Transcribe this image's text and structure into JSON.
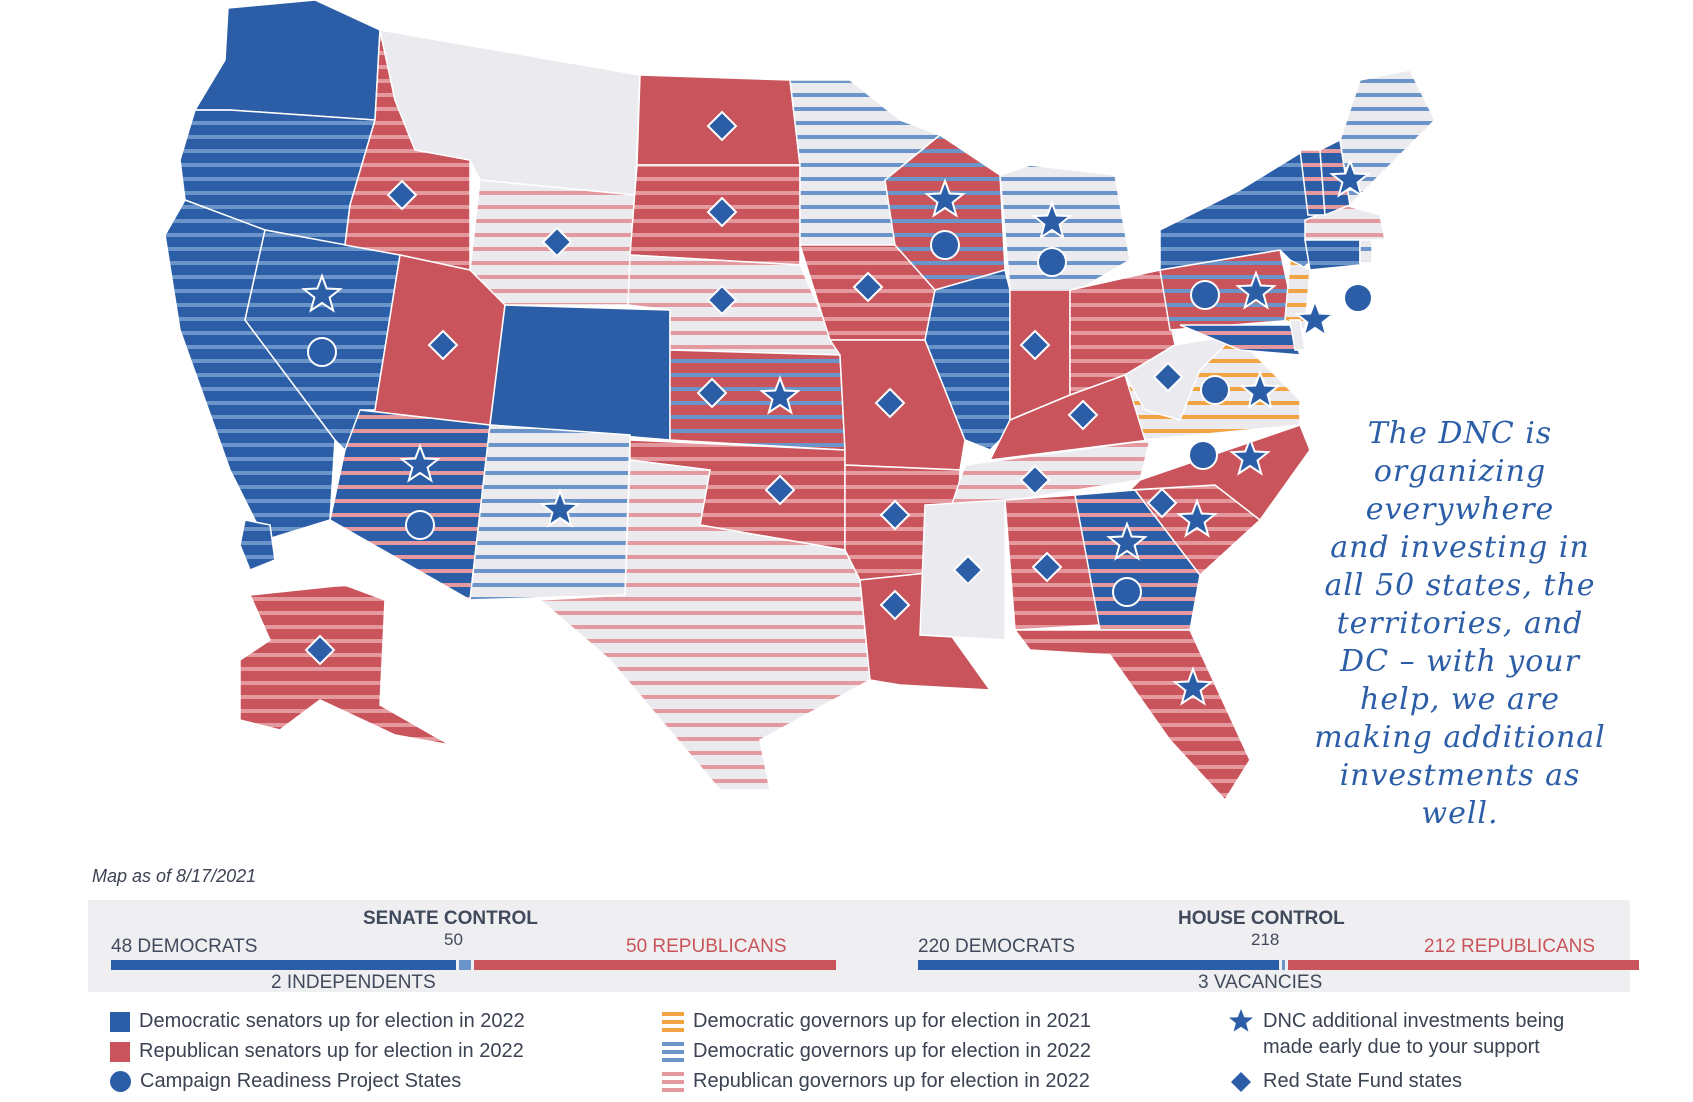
{
  "colors": {
    "dem": "#2c5ea8",
    "rep": "#c9545b",
    "dem_stripe": "#6b94c8",
    "rep_stripe": "#e4999e",
    "orange_stripe": "#f2a444",
    "neutral": "#ebebef",
    "text": "#3b4252"
  },
  "annotation": {
    "lines": [
      "The DNC is",
      "organizing",
      "everywhere",
      "and investing in",
      "all 50 states, the",
      "territories, and",
      "DC – with your",
      "help, we are",
      "making additional",
      "investments as",
      "well."
    ]
  },
  "map_date": "Map as of 8/17/2021",
  "senate": {
    "title": "SENATE CONTROL",
    "dem_label": "48 DEMOCRATS",
    "rep_label": "50 REPUBLICANS",
    "mid_label": "50",
    "ind_label": "2 INDEPENDENTS",
    "dem": 48,
    "ind": 2,
    "rep": 50,
    "total": 100
  },
  "house": {
    "title": "HOUSE CONTROL",
    "dem_label": "220 DEMOCRATS",
    "rep_label": "212 REPUBLICANS",
    "mid_label": "218",
    "vac_label": "3 VACANCIES",
    "dem": 220,
    "vac": 3,
    "rep": 212,
    "total": 435
  },
  "legend": {
    "dem_senators": "Democratic senators up for election in 2022",
    "rep_senators": "Republican senators up for election in 2022",
    "campaign_readiness": "Campaign Readiness Project States",
    "dem_gov_2021": "Democratic governors up for election in 2021",
    "dem_gov_2022": "Democratic governors up for election in 2022",
    "rep_gov_2022": "Republican governors up for election in 2022",
    "dnc_investments_line1": "DNC additional investments being",
    "dnc_investments_line2": "made early due to your support",
    "red_state_fund": "Red State Fund states"
  },
  "states": [
    {
      "abbr": "WA",
      "senate": "dem",
      "gov": null,
      "markers": []
    },
    {
      "abbr": "OR",
      "senate": "dem",
      "gov": "dem22",
      "markers": []
    },
    {
      "abbr": "CA",
      "senate": "dem",
      "gov": "dem22",
      "markers": []
    },
    {
      "abbr": "NV",
      "senate": "dem",
      "gov": "dem22",
      "markers": [
        "star",
        "circle"
      ]
    },
    {
      "abbr": "ID",
      "senate": "rep",
      "gov": "rep22",
      "markers": [
        "diamond"
      ]
    },
    {
      "abbr": "MT",
      "senate": null,
      "gov": null,
      "markers": []
    },
    {
      "abbr": "WY",
      "senate": null,
      "gov": "rep22",
      "markers": [
        "diamond"
      ]
    },
    {
      "abbr": "UT",
      "senate": "rep",
      "gov": null,
      "markers": [
        "diamond"
      ]
    },
    {
      "abbr": "CO",
      "senate": "dem",
      "gov": null,
      "markers": []
    },
    {
      "abbr": "AZ",
      "senate": "dem",
      "gov": "rep22",
      "markers": [
        "star",
        "circle"
      ]
    },
    {
      "abbr": "NM",
      "senate": null,
      "gov": "dem22",
      "markers": [
        "star"
      ]
    },
    {
      "abbr": "ND",
      "senate": "rep",
      "gov": null,
      "markers": [
        "diamond"
      ]
    },
    {
      "abbr": "SD",
      "senate": "rep",
      "gov": "rep22",
      "markers": [
        "diamond"
      ]
    },
    {
      "abbr": "NE",
      "senate": null,
      "gov": "rep22",
      "markers": [
        "diamond"
      ]
    },
    {
      "abbr": "KS",
      "senate": "rep",
      "gov": "dem22",
      "markers": [
        "diamond",
        "star"
      ]
    },
    {
      "abbr": "OK",
      "senate": "rep",
      "gov": "rep22",
      "markers": [
        "diamond"
      ]
    },
    {
      "abbr": "TX",
      "senate": null,
      "gov": "rep22",
      "markers": []
    },
    {
      "abbr": "MN",
      "senate": null,
      "gov": "dem22",
      "markers": []
    },
    {
      "abbr": "IA",
      "senate": "rep",
      "gov": "rep22",
      "markers": [
        "diamond"
      ]
    },
    {
      "abbr": "MO",
      "senate": "rep",
      "gov": null,
      "markers": [
        "diamond"
      ]
    },
    {
      "abbr": "AR",
      "senate": "rep",
      "gov": "rep22",
      "markers": [
        "diamond"
      ]
    },
    {
      "abbr": "LA",
      "senate": "rep",
      "gov": null,
      "markers": [
        "diamond"
      ]
    },
    {
      "abbr": "WI",
      "senate": "rep",
      "gov": "dem22",
      "markers": [
        "star",
        "circle"
      ]
    },
    {
      "abbr": "MI",
      "senate": null,
      "gov": "dem22",
      "markers": [
        "star",
        "circle"
      ]
    },
    {
      "abbr": "IL",
      "senate": "dem",
      "gov": "dem22",
      "markers": []
    },
    {
      "abbr": "IN",
      "senate": "rep",
      "gov": null,
      "markers": [
        "diamond"
      ]
    },
    {
      "abbr": "OH",
      "senate": "rep",
      "gov": "rep22",
      "markers": []
    },
    {
      "abbr": "KY",
      "senate": "rep",
      "gov": null,
      "markers": [
        "diamond"
      ]
    },
    {
      "abbr": "TN",
      "senate": null,
      "gov": "rep22",
      "markers": [
        "diamond"
      ]
    },
    {
      "abbr": "MS",
      "senate": null,
      "gov": null,
      "markers": [
        "diamond"
      ]
    },
    {
      "abbr": "AL",
      "senate": "rep",
      "gov": "rep22",
      "markers": [
        "diamond"
      ]
    },
    {
      "abbr": "GA",
      "senate": "dem",
      "gov": "rep22",
      "markers": [
        "star",
        "circle"
      ]
    },
    {
      "abbr": "FL",
      "senate": "rep",
      "gov": "rep22",
      "markers": [
        "star"
      ]
    },
    {
      "abbr": "SC",
      "senate": "rep",
      "gov": "rep22",
      "markers": [
        "diamond",
        "star"
      ]
    },
    {
      "abbr": "NC",
      "senate": "rep",
      "gov": null,
      "markers": [
        "circle",
        "star"
      ]
    },
    {
      "abbr": "VA",
      "senate": null,
      "gov": "dem21",
      "markers": [
        "circle",
        "star"
      ]
    },
    {
      "abbr": "WV",
      "senate": null,
      "gov": null,
      "markers": [
        "diamond"
      ]
    },
    {
      "abbr": "PA",
      "senate": "rep",
      "gov": "dem22",
      "markers": [
        "circle",
        "star"
      ]
    },
    {
      "abbr": "NY",
      "senate": "dem",
      "gov": "dem22",
      "markers": []
    },
    {
      "abbr": "NJ",
      "senate": null,
      "gov": "dem21",
      "markers": [
        "circle",
        "star"
      ]
    },
    {
      "abbr": "MD",
      "senate": "dem",
      "gov": "rep22",
      "markers": []
    },
    {
      "abbr": "DE",
      "senate": null,
      "gov": null,
      "markers": []
    },
    {
      "abbr": "CT",
      "senate": "dem",
      "gov": "dem22",
      "markers": []
    },
    {
      "abbr": "RI",
      "senate": null,
      "gov": "dem22",
      "markers": []
    },
    {
      "abbr": "MA",
      "senate": null,
      "gov": "rep22",
      "markers": []
    },
    {
      "abbr": "VT",
      "senate": "dem",
      "gov": "rep22",
      "markers": []
    },
    {
      "abbr": "NH",
      "senate": "dem",
      "gov": "rep22",
      "markers": [
        "star"
      ]
    },
    {
      "abbr": "ME",
      "senate": null,
      "gov": "dem22",
      "markers": []
    },
    {
      "abbr": "AK",
      "senate": "rep",
      "gov": "rep22",
      "markers": [
        "diamond"
      ]
    },
    {
      "abbr": "HI",
      "senate": "dem",
      "gov": "dem22",
      "markers": []
    }
  ]
}
